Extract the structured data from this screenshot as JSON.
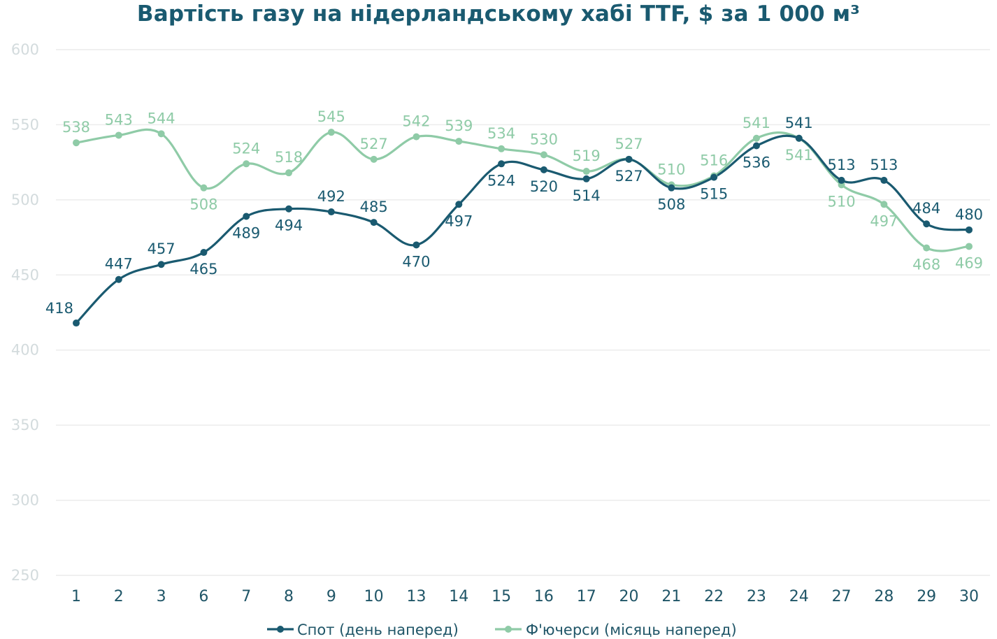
{
  "chart_data": {
    "type": "line",
    "title": "Вартість газу на нідерландському хабі TTF, $ за 1 000 м³",
    "categories": [
      "1",
      "2",
      "3",
      "6",
      "7",
      "8",
      "9",
      "10",
      "13",
      "14",
      "15",
      "16",
      "17",
      "20",
      "21",
      "22",
      "23",
      "24",
      "27",
      "28",
      "29",
      "30"
    ],
    "ylim": [
      250,
      600
    ],
    "yticks": [
      "250",
      "300",
      "350",
      "400",
      "450",
      "500",
      "550",
      "600"
    ],
    "grid": true,
    "legend_position": "bottom",
    "series": [
      {
        "name": "Спот (день наперед)",
        "color": "#1a5a70",
        "values": [
          418,
          447,
          457,
          465,
          489,
          494,
          492,
          485,
          470,
          497,
          524,
          520,
          514,
          527,
          508,
          515,
          536,
          541,
          513,
          513,
          484,
          480
        ],
        "label_pos": [
          "l",
          "a",
          "a",
          "b",
          "b",
          "b",
          "a",
          "a",
          "b",
          "b",
          "b",
          "b",
          "b",
          "b",
          "b",
          "b",
          "b",
          "a",
          "a",
          "a",
          "a",
          "a"
        ]
      },
      {
        "name": "Ф'ючерси (місяць наперед)",
        "color": "#8fcba7",
        "values": [
          538,
          543,
          544,
          508,
          524,
          518,
          545,
          527,
          542,
          539,
          534,
          530,
          519,
          527,
          510,
          516,
          541,
          541,
          510,
          497,
          468,
          469
        ],
        "label_pos": [
          "a",
          "a",
          "a",
          "b",
          "a",
          "a",
          "a",
          "a",
          "a",
          "a",
          "a",
          "a",
          "a",
          "a",
          "a",
          "a",
          "a",
          "b",
          "b",
          "b",
          "b",
          "b"
        ]
      }
    ]
  }
}
